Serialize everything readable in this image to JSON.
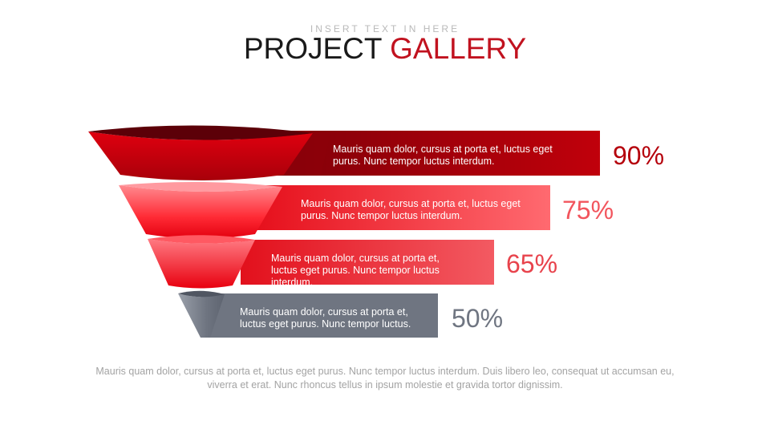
{
  "header": {
    "subtitle": "INSERT TEXT IN HERE",
    "title_main": "PROJECT",
    "title_accent": "GALLERY"
  },
  "colors": {
    "accent": "#c1121f",
    "tier1": "#c0000b",
    "tier2": "#ff5a62",
    "tier3": "#ee4b55",
    "tier4": "#6f7581"
  },
  "tiers": [
    {
      "text": "Mauris quam dolor, cursus at porta et, luctus eget purus. Nunc tempor luctus interdum.",
      "percent": "90%"
    },
    {
      "text": "Mauris quam dolor, cursus at porta et, luctus eget purus. Nunc tempor luctus interdum.",
      "percent": "75%"
    },
    {
      "text": "Mauris quam dolor, cursus at porta et, luctus eget purus. Nunc tempor luctus interdum.",
      "percent": "65%"
    },
    {
      "text": "Mauris quam dolor, cursus at porta et, luctus eget purus. Nunc tempor luctus.",
      "percent": "50%"
    }
  ],
  "footer": {
    "text": "Mauris quam dolor, cursus at porta et, luctus eget purus. Nunc tempor luctus interdum. Duis libero leo, consequat ut accumsan eu, viverra et erat. Nunc rhoncus tellus in ipsum molestie et gravida tortor dignissim."
  }
}
